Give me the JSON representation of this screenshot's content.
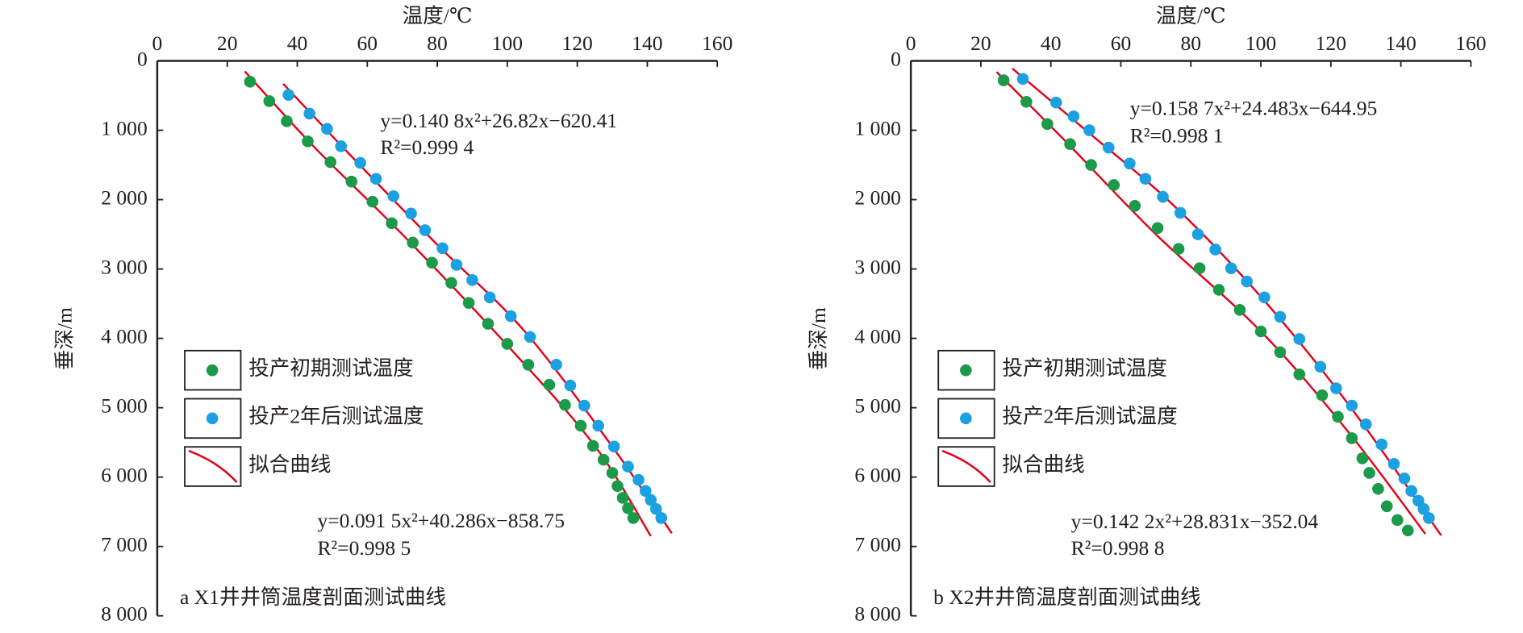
{
  "chart_data": [
    {
      "type": "scatter",
      "x_label": "温度/℃",
      "y_label": "垂深/m",
      "caption": "a X1井井筒温度剖面测试曲线",
      "xlim": [
        0,
        160
      ],
      "xticks": [
        0,
        20,
        40,
        60,
        80,
        100,
        120,
        140,
        160
      ],
      "ylim": [
        0,
        8000
      ],
      "yticks": [
        0,
        {
          "value": 1000,
          "label": "1 000"
        },
        {
          "value": 2000,
          "label": "2 000"
        },
        {
          "value": 3000,
          "label": "3 000"
        },
        {
          "value": 4000,
          "label": "4 000"
        },
        {
          "value": 5000,
          "label": "5 000"
        },
        {
          "value": 6000,
          "label": "6 000"
        },
        {
          "value": 7000,
          "label": "7 000"
        },
        {
          "value": 8000,
          "label": "8 000"
        }
      ],
      "y_inverted": true,
      "annotations": [
        "y=0.140 8x²+26.82x−620.41",
        "R²=0.999 4",
        "y=0.091 5x²+40.286x−858.75",
        "R²=0.998 5"
      ],
      "series": [
        {
          "name": "投产初期测试温度",
          "color": "#1b9a4a",
          "kind": "points",
          "x": [
            26.5,
            32,
            37,
            43,
            49.5,
            55.5,
            61.5,
            67,
            73,
            78.5,
            84,
            89,
            94.5,
            100,
            106,
            112,
            116.5,
            121,
            124.5,
            127.5,
            130,
            131.5,
            133,
            134.5,
            136
          ],
          "values": [
            300,
            580,
            870,
            1160,
            1460,
            1740,
            2030,
            2340,
            2620,
            2910,
            3200,
            3490,
            3790,
            4080,
            4380,
            4670,
            4960,
            5260,
            5550,
            5750,
            5940,
            6130,
            6300,
            6450,
            6590
          ]
        },
        {
          "name": "投产2年后测试温度",
          "color": "#1ba1e2",
          "kind": "points",
          "x": [
            37.5,
            43.5,
            48.5,
            52.5,
            58,
            62.5,
            67.5,
            72.5,
            76.5,
            81.5,
            85.5,
            90,
            95,
            101,
            106.5,
            114,
            118,
            122,
            126,
            130.5,
            134.5,
            137.5,
            139.5,
            141,
            142.5,
            144
          ],
          "values": [
            490,
            760,
            980,
            1230,
            1470,
            1700,
            1950,
            2200,
            2440,
            2700,
            2940,
            3160,
            3410,
            3680,
            3980,
            4380,
            4680,
            4970,
            5260,
            5560,
            5850,
            6040,
            6200,
            6330,
            6460,
            6590
          ]
        },
        {
          "name": "拟合曲线",
          "color": "#e3001b",
          "kind": "line",
          "x": [
            25,
            45,
            70,
            100,
            125,
            141
          ],
          "values": [
            150,
            1250,
            2500,
            4100,
            5550,
            6850
          ]
        },
        {
          "name": "拟合曲线",
          "color": "#e3001b",
          "kind": "line",
          "x": [
            36,
            55,
            80,
            105,
            130,
            147
          ],
          "values": [
            330,
            1350,
            2650,
            3900,
            5560,
            6810
          ]
        }
      ]
    },
    {
      "type": "scatter",
      "x_label": "温度/℃",
      "y_label": "垂深/m",
      "caption": "b X2井井筒温度剖面测试曲线",
      "xlim": [
        0,
        160
      ],
      "xticks": [
        0,
        20,
        40,
        60,
        80,
        100,
        120,
        140,
        160
      ],
      "ylim": [
        0,
        8000
      ],
      "yticks": [
        0,
        {
          "value": 1000,
          "label": "1 000"
        },
        {
          "value": 2000,
          "label": "2 000"
        },
        {
          "value": 3000,
          "label": "3 000"
        },
        {
          "value": 4000,
          "label": "4 000"
        },
        {
          "value": 5000,
          "label": "5 000"
        },
        {
          "value": 6000,
          "label": "6 000"
        },
        {
          "value": 7000,
          "label": "7 000"
        },
        {
          "value": 8000,
          "label": "8 000"
        }
      ],
      "y_inverted": true,
      "annotations": [
        "y=0.158 7x²+24.483x−644.95",
        "R²=0.998 1",
        "y=0.142 2x²+28.831x−352.04",
        "R²=0.998 8"
      ],
      "series": [
        {
          "name": "投产初期测试温度",
          "color": "#1b9a4a",
          "kind": "points",
          "x": [
            26.5,
            33,
            39,
            45.5,
            51.5,
            58,
            64,
            70.5,
            76.5,
            82.5,
            88,
            94,
            100,
            105.5,
            111,
            117.5,
            122,
            126,
            129,
            131,
            133.5,
            136,
            139,
            142
          ],
          "values": [
            280,
            590,
            910,
            1200,
            1500,
            1790,
            2090,
            2410,
            2710,
            2990,
            3300,
            3590,
            3900,
            4200,
            4520,
            4820,
            5130,
            5440,
            5730,
            5940,
            6170,
            6420,
            6620,
            6770
          ]
        },
        {
          "name": "投产2年后测试温度",
          "color": "#1ba1e2",
          "kind": "points",
          "x": [
            32,
            41.5,
            46.5,
            51,
            56.5,
            62.5,
            67,
            72,
            77,
            82,
            87,
            91.5,
            96,
            101,
            105.5,
            111,
            117,
            121.5,
            126,
            130,
            134.5,
            138,
            141,
            143,
            145,
            146.5,
            148
          ],
          "values": [
            260,
            600,
            800,
            1000,
            1250,
            1480,
            1700,
            1960,
            2190,
            2500,
            2720,
            2990,
            3180,
            3410,
            3690,
            4010,
            4410,
            4720,
            4970,
            5240,
            5530,
            5810,
            6020,
            6200,
            6340,
            6460,
            6590
          ]
        },
        {
          "name": "拟合曲线",
          "color": "#e3001b",
          "kind": "line",
          "x": [
            24.5,
            45,
            70,
            100,
            125,
            147
          ],
          "values": [
            160,
            1200,
            2500,
            3900,
            5350,
            6820
          ]
        },
        {
          "name": "拟合曲线",
          "color": "#e3001b",
          "kind": "line",
          "x": [
            29,
            50,
            75,
            100,
            125,
            151.5
          ],
          "values": [
            110,
            1000,
            2080,
            3400,
            4950,
            6840
          ]
        }
      ]
    }
  ]
}
